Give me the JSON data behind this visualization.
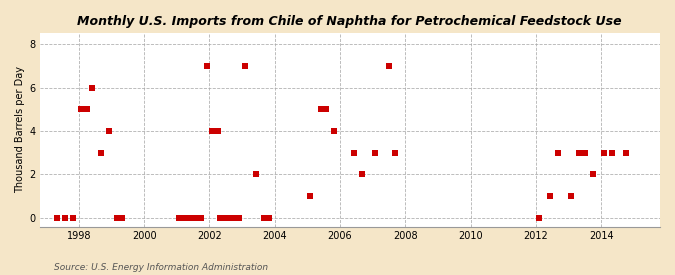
{
  "title": "Monthly U.S. Imports from Chile of Naphtha for Petrochemical Feedstock Use",
  "ylabel": "Thousand Barrels per Day",
  "source": "Source: U.S. Energy Information Administration",
  "background_color": "#f5e6c8",
  "plot_bg_color": "#ffffff",
  "marker_color": "#cc0000",
  "marker_size": 25,
  "xlim": [
    1996.8,
    2015.8
  ],
  "ylim": [
    -0.4,
    8.5
  ],
  "yticks": [
    0,
    2,
    4,
    6,
    8
  ],
  "xticks": [
    1998,
    2000,
    2002,
    2004,
    2006,
    2008,
    2010,
    2012,
    2014
  ],
  "data_points": [
    [
      1997.33,
      0
    ],
    [
      1997.58,
      0
    ],
    [
      1997.83,
      0
    ],
    [
      1998.08,
      5
    ],
    [
      1998.25,
      5
    ],
    [
      1998.42,
      6
    ],
    [
      1998.67,
      3
    ],
    [
      1998.92,
      4
    ],
    [
      1999.17,
      0
    ],
    [
      1999.33,
      0
    ],
    [
      2001.08,
      0
    ],
    [
      2001.17,
      0
    ],
    [
      2001.25,
      0
    ],
    [
      2001.33,
      0
    ],
    [
      2001.42,
      0
    ],
    [
      2001.5,
      0
    ],
    [
      2001.58,
      0
    ],
    [
      2001.67,
      0
    ],
    [
      2001.75,
      0
    ],
    [
      2001.92,
      7
    ],
    [
      2002.08,
      4
    ],
    [
      2002.25,
      4
    ],
    [
      2002.33,
      0
    ],
    [
      2002.42,
      0
    ],
    [
      2002.5,
      0
    ],
    [
      2002.58,
      0
    ],
    [
      2002.67,
      0
    ],
    [
      2002.75,
      0
    ],
    [
      2002.83,
      0
    ],
    [
      2002.92,
      0
    ],
    [
      2003.08,
      7
    ],
    [
      2003.42,
      2
    ],
    [
      2003.67,
      0
    ],
    [
      2003.75,
      0
    ],
    [
      2003.83,
      0
    ],
    [
      2005.08,
      1
    ],
    [
      2005.42,
      5
    ],
    [
      2005.58,
      5
    ],
    [
      2005.83,
      4
    ],
    [
      2006.42,
      3
    ],
    [
      2006.67,
      2
    ],
    [
      2007.08,
      3
    ],
    [
      2007.5,
      7
    ],
    [
      2007.67,
      3
    ],
    [
      2012.08,
      0
    ],
    [
      2012.42,
      1
    ],
    [
      2012.67,
      3
    ],
    [
      2013.08,
      1
    ],
    [
      2013.33,
      3
    ],
    [
      2013.5,
      3
    ],
    [
      2013.75,
      2
    ],
    [
      2014.08,
      3
    ],
    [
      2014.33,
      3
    ],
    [
      2014.75,
      3
    ]
  ]
}
